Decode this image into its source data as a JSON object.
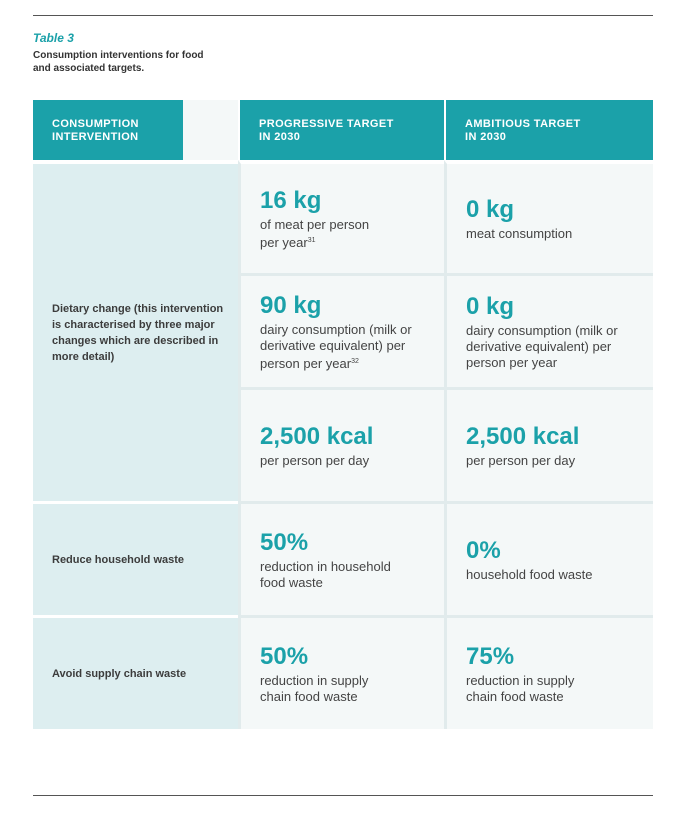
{
  "caption": {
    "table_label": "Table 3",
    "description": "Consumption interventions for food and associated targets."
  },
  "headers": {
    "col1": "CONSUMPTION INTERVENTION",
    "col2": "PROGRESSIVE TARGET IN 2030",
    "col3": "AMBITIOUS TARGET IN 2030"
  },
  "rows": {
    "dietary_label": "Dietary change (this intervention is characterised by three major changes which are described in more detail)",
    "meat": {
      "progressive_value": "16 kg",
      "progressive_text": "of meat per person per year",
      "progressive_ref": "31",
      "ambitious_value": "0 kg",
      "ambitious_text": "meat consumption"
    },
    "dairy": {
      "progressive_value": "90 kg",
      "progressive_text": "dairy consumption (milk or derivative equivalent) per person per year",
      "progressive_ref": "32",
      "ambitious_value": "0 kg",
      "ambitious_text": "dairy consumption (milk or derivative equivalent) per person per year"
    },
    "kcal": {
      "progressive_value": "2,500 kcal",
      "progressive_text": "per person per day",
      "ambitious_value": "2,500 kcal",
      "ambitious_text": "per person per day"
    },
    "household": {
      "label": "Reduce household waste",
      "progressive_value": "50%",
      "progressive_text": "reduction in household food waste",
      "ambitious_value": "0%",
      "ambitious_text": "household food waste"
    },
    "supply": {
      "label": "Avoid supply chain waste",
      "progressive_value": "50%",
      "progressive_text": "reduction in supply chain food waste",
      "ambitious_value": "75%",
      "ambitious_text": "reduction in supply chain food waste"
    }
  }
}
